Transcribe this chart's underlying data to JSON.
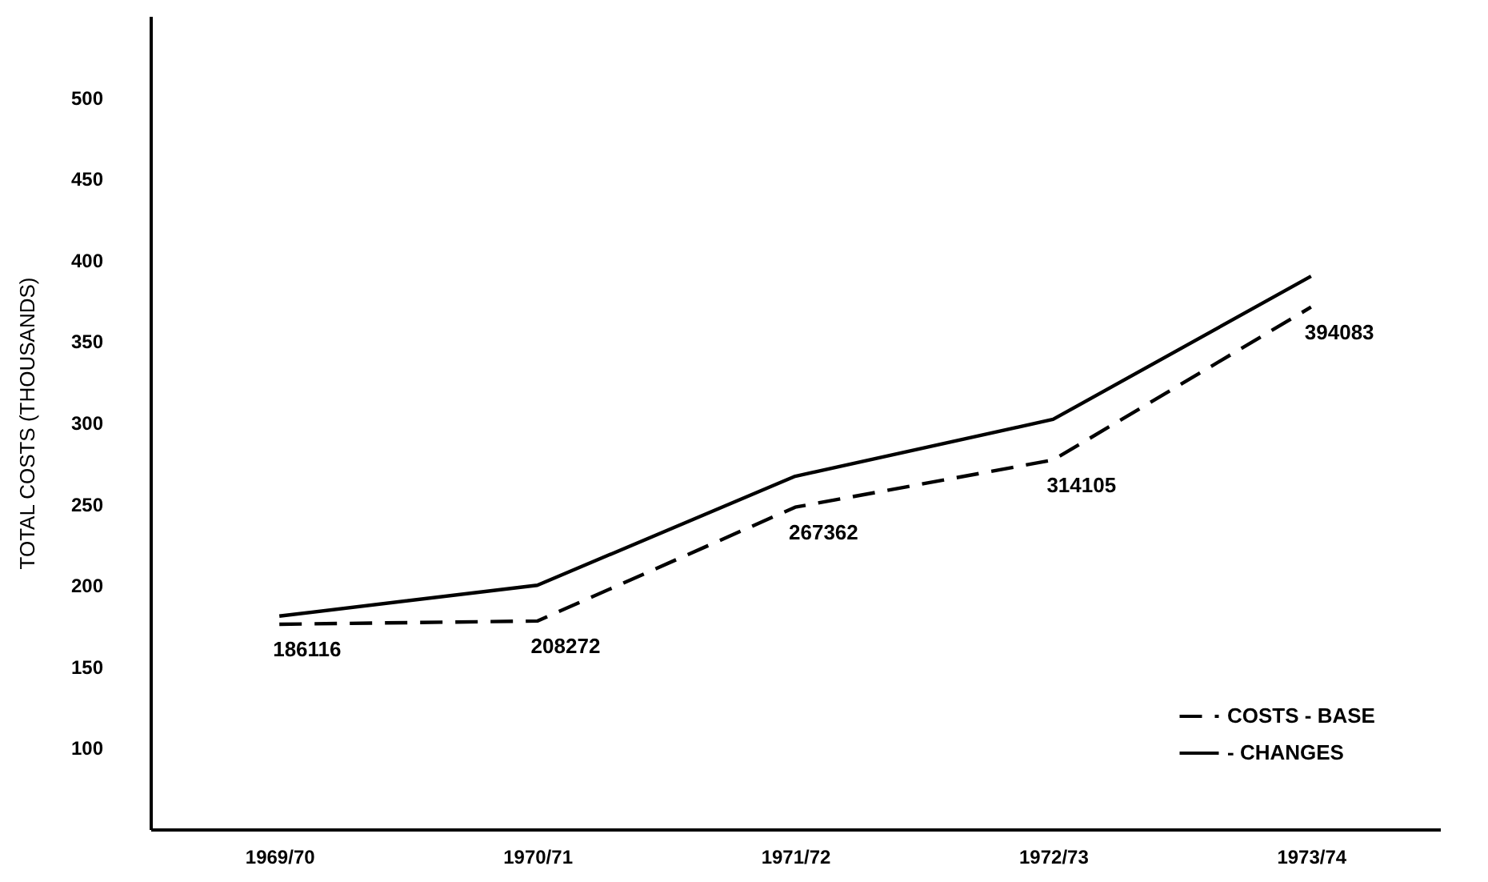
{
  "chart_data": {
    "type": "line",
    "ylabel": "TOTAL COSTS (THOUSANDS)",
    "categories": [
      "1969/70",
      "1970/71",
      "1971/72",
      "1972/73",
      "1973/74"
    ],
    "series": [
      {
        "name": "COSTS - BASE",
        "color": "#000000",
        "line_style": "dashed",
        "values": [
          176,
          178,
          248,
          277,
          371
        ]
      },
      {
        "name": "- CHANGES",
        "color": "#000000",
        "line_style": "solid",
        "values": [
          181,
          200,
          267,
          302,
          390
        ]
      }
    ],
    "ylim": [
      50,
      550
    ],
    "yticks": [
      100,
      150,
      200,
      250,
      300,
      350,
      400,
      450,
      500
    ],
    "annotations": [
      {
        "text": "186116",
        "x": "1969/70",
        "y": 176
      },
      {
        "text": "208272",
        "x": "1970/71",
        "y": 178
      },
      {
        "text": "267362",
        "x": "1971/72",
        "y": 248
      },
      {
        "text": "314105",
        "x": "1972/73",
        "y": 277
      },
      {
        "text": "394083",
        "x": "1973/74",
        "y": 371
      }
    ],
    "grid": false,
    "legend": "bottom right",
    "marker": "none"
  }
}
